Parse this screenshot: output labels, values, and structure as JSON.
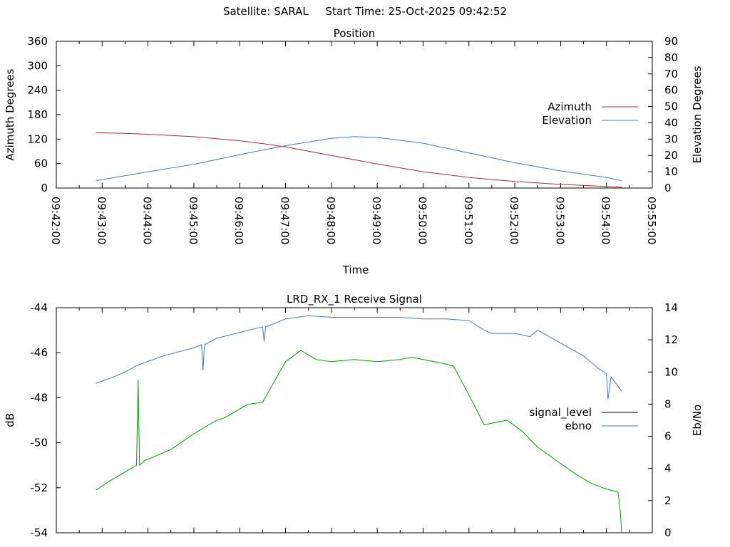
{
  "header": {
    "title": "Satellite: SARAL     Start Time: 25-Oct-2025 09:42:52"
  },
  "chart_data": [
    {
      "type": "line",
      "title": "Position",
      "xlabel": "Time",
      "ylabel": "Azimuth Degrees",
      "y2label": "Elevation Degrees",
      "x_ticks": [
        "09:42:00",
        "09:43:00",
        "09:44:00",
        "09:45:00",
        "09:46:00",
        "09:47:00",
        "09:48:00",
        "09:49:00",
        "09:50:00",
        "09:51:00",
        "09:52:00",
        "09:53:00",
        "09:54:00",
        "09:55:00"
      ],
      "xlim": [
        "09:42:00",
        "09:55:00"
      ],
      "ylim": [
        0,
        360
      ],
      "y_ticks": [
        0,
        60,
        120,
        180,
        240,
        300,
        360
      ],
      "y2lim": [
        0,
        90
      ],
      "y2_ticks": [
        0,
        10,
        20,
        30,
        40,
        50,
        60,
        70,
        80,
        90
      ],
      "legend": "right",
      "grid": false,
      "series": [
        {
          "name": "Azimuth",
          "axis": "left",
          "color": "#a0303a",
          "x": [
            "09:42:52",
            "09:43:30",
            "09:44:00",
            "09:45:00",
            "09:46:00",
            "09:46:30",
            "09:47:00",
            "09:48:00",
            "09:49:00",
            "09:50:00",
            "09:51:00",
            "09:52:00",
            "09:53:00",
            "09:54:00",
            "09:54:20"
          ],
          "values": [
            136,
            134,
            132,
            126,
            116,
            109,
            101,
            80,
            59,
            40,
            26,
            16,
            9,
            4,
            2
          ]
        },
        {
          "name": "Elevation",
          "axis": "right",
          "color": "#4a78a8",
          "x": [
            "09:42:52",
            "09:44:00",
            "09:45:00",
            "09:46:00",
            "09:47:00",
            "09:48:00",
            "09:48:30",
            "09:49:00",
            "09:50:00",
            "09:51:00",
            "09:52:00",
            "09:53:00",
            "09:54:00",
            "09:54:20"
          ],
          "values": [
            4.5,
            10,
            14.5,
            20.5,
            26,
            30.5,
            31.5,
            31,
            27.5,
            21.5,
            15.5,
            10.5,
            6.5,
            4.5
          ]
        }
      ]
    },
    {
      "type": "line",
      "title": "LRD_RX_1 Receive Signal",
      "xlabel": "",
      "ylabel": "dB",
      "y2label": "Eb/No",
      "xlim": [
        "09:42:00",
        "09:55:00"
      ],
      "ylim": [
        -54,
        -44
      ],
      "y_ticks": [
        -54,
        -52,
        -50,
        -48,
        -46,
        -44
      ],
      "y2lim": [
        0,
        14
      ],
      "y2_ticks": [
        0,
        2,
        4,
        6,
        8,
        10,
        12,
        14
      ],
      "legend": "right",
      "grid": false,
      "series": [
        {
          "name": "signal_level",
          "axis": "left",
          "color": "#00a000",
          "x": [
            "09:42:52",
            "09:43:10",
            "09:43:30",
            "09:43:40",
            "09:43:45",
            "09:43:47",
            "09:43:49",
            "09:43:55",
            "09:44:30",
            "09:45:00",
            "09:45:30",
            "09:45:40",
            "09:46:10",
            "09:46:30",
            "09:47:00",
            "09:47:20",
            "09:47:40",
            "09:48:00",
            "09:48:30",
            "09:49:00",
            "09:49:30",
            "09:49:45",
            "09:50:30",
            "09:50:40",
            "09:51:05",
            "09:51:20",
            "09:51:50",
            "09:52:10",
            "09:52:30",
            "09:52:55",
            "09:53:20",
            "09:53:40",
            "09:53:55",
            "09:54:05",
            "09:54:15",
            "09:54:18",
            "09:54:20"
          ],
          "values": [
            -52.1,
            -51.7,
            -51.3,
            -51.1,
            -51.0,
            -47.2,
            -51.0,
            -50.8,
            -50.3,
            -49.6,
            -49.0,
            -48.9,
            -48.3,
            -48.2,
            -46.4,
            -45.9,
            -46.3,
            -46.4,
            -46.3,
            -46.4,
            -46.3,
            -46.2,
            -46.5,
            -46.6,
            -48.2,
            -49.2,
            -49.0,
            -49.5,
            -50.2,
            -50.8,
            -51.4,
            -51.8,
            -52.0,
            -52.1,
            -52.2,
            -53.0,
            -54.0
          ]
        },
        {
          "name": "ebno",
          "axis": "right",
          "color": "#4a78a8",
          "x": [
            "09:42:52",
            "09:43:10",
            "09:43:30",
            "09:43:45",
            "09:44:20",
            "09:45:00",
            "09:45:10",
            "09:45:12",
            "09:45:14",
            "09:45:30",
            "09:46:20",
            "09:46:30",
            "09:46:32",
            "09:46:34",
            "09:47:00",
            "09:47:30",
            "09:48:00",
            "09:48:30",
            "09:49:00",
            "09:49:30",
            "09:50:00",
            "09:50:30",
            "09:51:00",
            "09:51:20",
            "09:51:30",
            "09:52:00",
            "09:52:20",
            "09:52:30",
            "09:53:00",
            "09:53:30",
            "09:53:50",
            "09:54:00",
            "09:54:02",
            "09:54:06",
            "09:54:20"
          ],
          "values": [
            9.3,
            9.6,
            10.0,
            10.4,
            11.0,
            11.5,
            11.7,
            10.1,
            11.7,
            12.1,
            12.7,
            12.8,
            11.9,
            12.8,
            13.3,
            13.5,
            13.4,
            13.4,
            13.4,
            13.4,
            13.3,
            13.3,
            13.2,
            12.6,
            12.4,
            12.4,
            12.2,
            12.6,
            11.8,
            11.0,
            10.2,
            9.9,
            8.3,
            9.7,
            8.8
          ]
        }
      ]
    }
  ]
}
